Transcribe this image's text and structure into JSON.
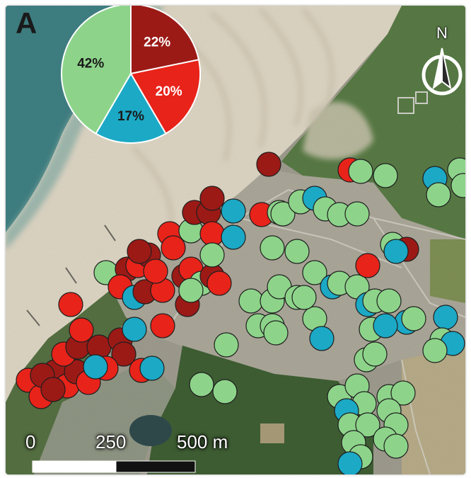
{
  "panel_label": "A",
  "north_label": "N",
  "pie": {
    "slices": [
      {
        "label": "22%",
        "value": 22,
        "color": "#9b1a16"
      },
      {
        "label": "20%",
        "value": 20,
        "color": "#e8231a"
      },
      {
        "label": "17%",
        "value": 17,
        "color": "#1ba9c6"
      },
      {
        "label": "42%",
        "value": 42,
        "color": "#8dd48a"
      }
    ]
  },
  "scale_bar": {
    "labels": [
      "0",
      "250",
      "500 m"
    ]
  },
  "point_colors": {
    "darkred": "#9b1a16",
    "red": "#e8231a",
    "blue": "#1ba9c6",
    "green": "#8dd48a"
  },
  "map_colors": {
    "sea": "#3f7f82",
    "beach": "#dcd5c4",
    "vegetation": "#51713f",
    "urban": "#a7a496",
    "lake": "#2f4a4c"
  }
}
